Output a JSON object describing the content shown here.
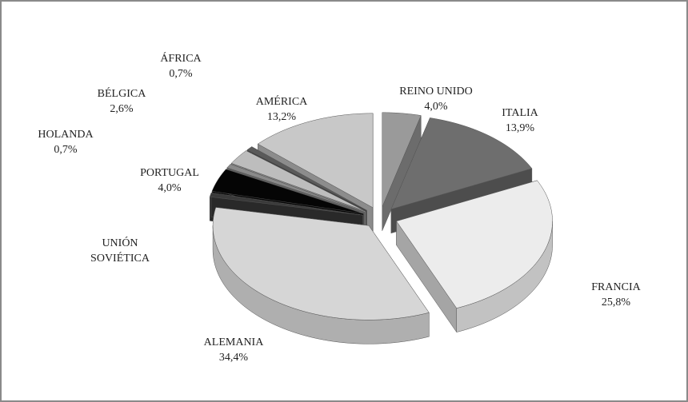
{
  "chart_data": {
    "type": "pie",
    "three_d": true,
    "exploded": true,
    "categories": [
      "REINO UNIDO",
      "ITALIA",
      "FRANCIA",
      "ALEMANIA",
      "UNIÓN SOVIÉTICA",
      "PORTUGAL",
      "HOLANDA",
      "BÉLGICA",
      "ÁFRICA",
      "AMÉRICA"
    ],
    "values": [
      4.0,
      13.9,
      25.8,
      34.4,
      0.7,
      4.0,
      0.7,
      2.6,
      0.7,
      13.2
    ],
    "value_labels": [
      "4,0%",
      "13,9%",
      "25,8%",
      "34,4%",
      null,
      "4,0%",
      "0,7%",
      "2,6%",
      "0,7%",
      "13,2%"
    ],
    "colors": [
      "#9a9a9a",
      "#6e6e6e",
      "#ececec",
      "#d6d6d6",
      "#3a3a3a",
      "#050505",
      "#8a8a8a",
      "#bdbdbd",
      "#5a5a5a",
      "#c8c8c8"
    ]
  }
}
